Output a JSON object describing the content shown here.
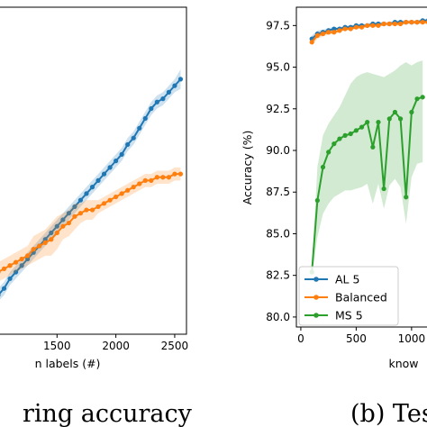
{
  "chart_data": [
    {
      "type": "line",
      "xlabel": "n labels (#)",
      "caption": "ring accuracy",
      "xticks": [
        1500,
        2000,
        2500
      ],
      "xlim": [
        1000,
        2600
      ],
      "ylim": [
        0,
        1
      ],
      "series": [
        {
          "name": "AL 5",
          "color": "#1f77b4",
          "x": [
            1000,
            1050,
            1100,
            1150,
            1200,
            1250,
            1300,
            1350,
            1400,
            1450,
            1500,
            1550,
            1600,
            1650,
            1700,
            1750,
            1800,
            1850,
            1900,
            1950,
            2000,
            2050,
            2100,
            2150,
            2200,
            2250,
            2300,
            2350,
            2400,
            2450,
            2500,
            2550
          ],
          "y": [
            0.12,
            0.14,
            0.17,
            0.19,
            0.21,
            0.23,
            0.25,
            0.27,
            0.29,
            0.31,
            0.33,
            0.35,
            0.37,
            0.39,
            0.41,
            0.43,
            0.45,
            0.47,
            0.49,
            0.51,
            0.53,
            0.55,
            0.58,
            0.6,
            0.63,
            0.66,
            0.69,
            0.71,
            0.72,
            0.74,
            0.76,
            0.78
          ],
          "band": [
            0.02,
            0.02,
            0.02,
            0.02,
            0.02,
            0.02,
            0.02,
            0.02,
            0.02,
            0.02,
            0.02,
            0.02,
            0.02,
            0.02,
            0.02,
            0.02,
            0.02,
            0.02,
            0.02,
            0.02,
            0.02,
            0.02,
            0.02,
            0.02,
            0.02,
            0.02,
            0.02,
            0.02,
            0.02,
            0.02,
            0.02,
            0.03
          ]
        },
        {
          "name": "Balanced",
          "color": "#ff7f0e",
          "x": [
            1000,
            1050,
            1100,
            1150,
            1200,
            1250,
            1300,
            1350,
            1400,
            1450,
            1500,
            1550,
            1600,
            1650,
            1700,
            1750,
            1800,
            1850,
            1900,
            1950,
            2000,
            2050,
            2100,
            2150,
            2200,
            2250,
            2300,
            2350,
            2400,
            2450,
            2500,
            2550
          ],
          "y": [
            0.19,
            0.2,
            0.21,
            0.22,
            0.23,
            0.24,
            0.26,
            0.27,
            0.28,
            0.29,
            0.31,
            0.33,
            0.34,
            0.36,
            0.37,
            0.38,
            0.38,
            0.39,
            0.4,
            0.41,
            0.42,
            0.43,
            0.44,
            0.45,
            0.46,
            0.47,
            0.47,
            0.48,
            0.48,
            0.48,
            0.49,
            0.49
          ],
          "band": [
            0.03,
            0.03,
            0.03,
            0.03,
            0.03,
            0.03,
            0.04,
            0.04,
            0.04,
            0.05,
            0.05,
            0.04,
            0.04,
            0.04,
            0.03,
            0.03,
            0.03,
            0.02,
            0.02,
            0.02,
            0.02,
            0.02,
            0.02,
            0.02,
            0.02,
            0.02,
            0.02,
            0.02,
            0.02,
            0.02,
            0.02,
            0.02
          ]
        }
      ]
    },
    {
      "type": "line",
      "ylabel": "Accuracy (%)",
      "xlabel": "know",
      "caption": "(b) Tes",
      "xticks": [
        0,
        500,
        1000
      ],
      "yticks": [
        80.0,
        82.5,
        85.0,
        87.5,
        90.0,
        92.5,
        95.0,
        97.5
      ],
      "ytick_labels": [
        "80.0",
        "82.5",
        "85.0",
        "87.5",
        "90.0",
        "92.5",
        "95.0",
        "97.5"
      ],
      "xlim": [
        -40,
        1180
      ],
      "ylim": [
        79.4,
        98.6
      ],
      "legend": {
        "position": "lower-left",
        "entries": [
          "AL 5",
          "Balanced",
          "MS 5"
        ]
      },
      "series": [
        {
          "name": "AL 5",
          "color": "#1f77b4",
          "x": [
            100,
            150,
            200,
            250,
            300,
            350,
            400,
            450,
            500,
            550,
            600,
            650,
            700,
            750,
            800,
            850,
            900,
            950,
            1000,
            1050,
            1100,
            1150
          ],
          "y": [
            96.7,
            97.0,
            97.1,
            97.2,
            97.3,
            97.3,
            97.4,
            97.4,
            97.5,
            97.5,
            97.5,
            97.6,
            97.6,
            97.6,
            97.6,
            97.7,
            97.7,
            97.7,
            97.7,
            97.7,
            97.8,
            97.8
          ],
          "band": [
            0.2,
            0.2,
            0.15,
            0.15,
            0.1,
            0.1,
            0.1,
            0.1,
            0.1,
            0.1,
            0.1,
            0.1,
            0.1,
            0.1,
            0.1,
            0.1,
            0.1,
            0.1,
            0.1,
            0.1,
            0.1,
            0.1
          ]
        },
        {
          "name": "Balanced",
          "color": "#ff7f0e",
          "x": [
            100,
            150,
            200,
            250,
            300,
            350,
            400,
            450,
            500,
            550,
            600,
            650,
            700,
            750,
            800,
            850,
            900,
            950,
            1000,
            1050,
            1100,
            1150
          ],
          "y": [
            96.5,
            96.9,
            97.0,
            97.1,
            97.1,
            97.2,
            97.3,
            97.3,
            97.4,
            97.4,
            97.5,
            97.5,
            97.5,
            97.6,
            97.6,
            97.6,
            97.6,
            97.7,
            97.7,
            97.7,
            97.7,
            97.7
          ],
          "band": [
            0.2,
            0.2,
            0.15,
            0.15,
            0.1,
            0.1,
            0.1,
            0.1,
            0.1,
            0.1,
            0.1,
            0.1,
            0.1,
            0.1,
            0.1,
            0.1,
            0.1,
            0.1,
            0.1,
            0.1,
            0.1,
            0.1
          ]
        },
        {
          "name": "MS 5",
          "color": "#2ca02c",
          "x": [
            100,
            150,
            200,
            250,
            300,
            350,
            400,
            450,
            500,
            550,
            600,
            650,
            700,
            750,
            800,
            850,
            900,
            950,
            1000,
            1050,
            1100
          ],
          "y": [
            82.7,
            87.0,
            89.0,
            89.9,
            90.4,
            90.7,
            90.9,
            91.0,
            91.2,
            91.4,
            91.7,
            90.2,
            91.7,
            87.7,
            91.9,
            92.3,
            91.9,
            87.2,
            92.3,
            93.1,
            93.2
          ],
          "lower": [
            82.4,
            84.8,
            86.2,
            86.8,
            87.2,
            87.4,
            87.6,
            87.6,
            87.7,
            87.8,
            88.0,
            86.8,
            88.0,
            86.5,
            87.9,
            88.3,
            87.8,
            85.6,
            88.4,
            89.2,
            89.3
          ],
          "upper": [
            83.0,
            89.0,
            90.9,
            91.6,
            92.1,
            92.6,
            93.3,
            94.0,
            94.4,
            94.6,
            94.7,
            94.6,
            94.5,
            94.4,
            94.6,
            94.8,
            95.1,
            95.3,
            95.1,
            95.3,
            95.4
          ]
        }
      ]
    }
  ]
}
